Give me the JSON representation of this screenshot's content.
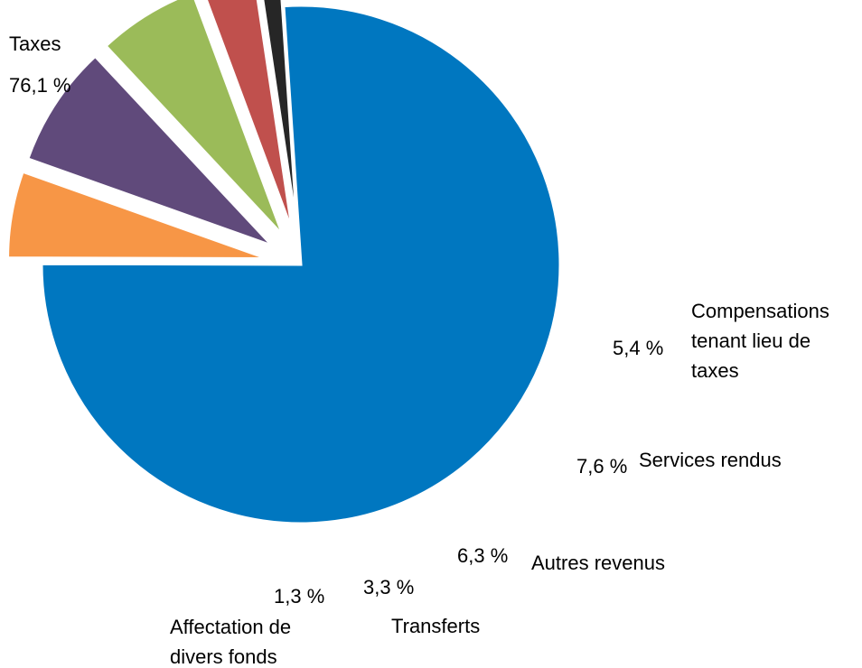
{
  "chart_data": {
    "type": "pie",
    "title": "",
    "start_angle_deg": 93.8,
    "direction": "clockwise",
    "slices": [
      {
        "label": [
          "Taxes"
        ],
        "value_label": "76,1 %",
        "value": 76.1,
        "color": "#0077c0",
        "exploded": false
      },
      {
        "label": [
          "Compensations",
          "tenant lieu de",
          "taxes"
        ],
        "value_label": "5,4 %",
        "value": 5.4,
        "color": "#f79646",
        "exploded": true
      },
      {
        "label": [
          "Services rendus"
        ],
        "value_label": "7,6 %",
        "value": 7.6,
        "color": "#604a7b",
        "exploded": true
      },
      {
        "label": [
          "Autres revenus"
        ],
        "value_label": "6,3 %",
        "value": 6.3,
        "color": "#9bbb59",
        "exploded": true
      },
      {
        "label": [
          "Transferts"
        ],
        "value_label": "3,3 %",
        "value": 3.3,
        "color": "#c0504d",
        "exploded": true
      },
      {
        "label": [
          "Affectation de",
          "divers fonds"
        ],
        "value_label": "1,3 %",
        "value": 1.3,
        "color": "#262626",
        "exploded": true
      }
    ]
  }
}
